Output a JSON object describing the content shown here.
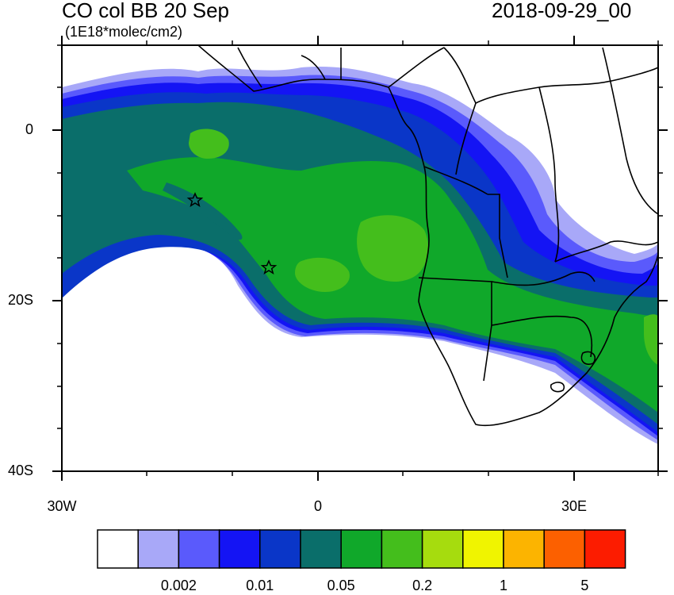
{
  "header": {
    "title": "CO col BB 20 Sep",
    "units": "(1E18*molec/cm2)",
    "datetime": "2018-09-29_00"
  },
  "axes": {
    "lat_labels": [
      {
        "value": 0,
        "label": "0"
      },
      {
        "value": -20,
        "label": "20S"
      },
      {
        "value": -40,
        "label": "40S"
      }
    ],
    "lon_labels": [
      {
        "value": -30,
        "label": "30W"
      },
      {
        "value": 0,
        "label": "0"
      },
      {
        "value": 30,
        "label": "30E"
      }
    ],
    "lon_range": [
      -30,
      40
    ],
    "lat_range": [
      -40,
      10
    ]
  },
  "map": {
    "field": "CO column, biomass burning",
    "markers": [
      {
        "type": "star",
        "lon": -14.4,
        "lat": -7.9
      },
      {
        "type": "star",
        "lon": -5.7,
        "lat": -15.9
      }
    ]
  },
  "colorbar": {
    "colors": [
      "#ffffff",
      "#a8a8f8",
      "#5a5afc",
      "#1414f4",
      "#0a36c8",
      "#0a6e6a",
      "#10a82a",
      "#44be1c",
      "#a6dc0e",
      "#f0f400",
      "#fcb400",
      "#fc6000",
      "#fc1c00"
    ],
    "labels": [
      {
        "after_box": 2,
        "text": "0.002"
      },
      {
        "after_box": 4,
        "text": "0.01"
      },
      {
        "after_box": 6,
        "text": "0.05"
      },
      {
        "after_box": 8,
        "text": "0.2"
      },
      {
        "after_box": 10,
        "text": "1"
      },
      {
        "after_box": 12,
        "text": "5"
      }
    ]
  }
}
